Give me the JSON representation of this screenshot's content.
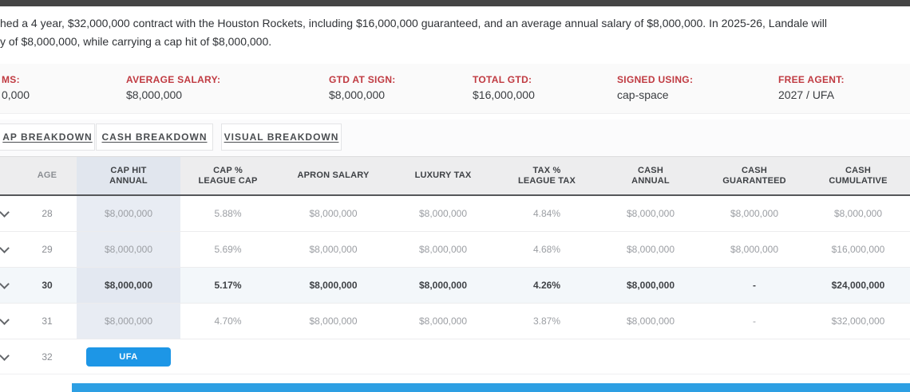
{
  "intro": {
    "line1": "hed a 4 year, $32,000,000 contract with the Houston Rockets, including $16,000,000 guaranteed, and an average annual salary of $8,000,000. In 2025-26, Landale will",
    "line2": "y of $8,000,000, while carrying a cap hit of $8,000,000."
  },
  "stats": {
    "items": [
      {
        "label": "MS:",
        "value": "0,000"
      },
      {
        "label": "AVERAGE SALARY:",
        "value": "$8,000,000"
      },
      {
        "label": "GTD AT SIGN:",
        "value": "$8,000,000"
      },
      {
        "label": "TOTAL GTD:",
        "value": "$16,000,000"
      },
      {
        "label": "SIGNED USING:",
        "value": "cap-space"
      },
      {
        "label": "FREE AGENT:",
        "value": "2027 / UFA"
      }
    ]
  },
  "tabs": {
    "items": [
      {
        "label": "AP BREAKDOWN"
      },
      {
        "label": "CASH BREAKDOWN"
      },
      {
        "label": "VISUAL BREAKDOWN"
      }
    ]
  },
  "table": {
    "columns": [
      {
        "line1": "AGE",
        "line2": ""
      },
      {
        "line1": "CAP HIT",
        "line2": "ANNUAL"
      },
      {
        "line1": "CAP %",
        "line2": "LEAGUE CAP"
      },
      {
        "line1": "APRON SALARY",
        "line2": ""
      },
      {
        "line1": "LUXURY TAX",
        "line2": ""
      },
      {
        "line1": "TAX %",
        "line2": "LEAGUE TAX"
      },
      {
        "line1": "CASH",
        "line2": "ANNUAL"
      },
      {
        "line1": "CASH",
        "line2": "GUARANTEED"
      },
      {
        "line1": "CASH",
        "line2": "CUMULATIVE"
      }
    ],
    "rows": [
      {
        "age": "28",
        "cap_hit": "$8,000,000",
        "cap_pct": "5.88%",
        "apron_salary": "$8,000,000",
        "luxury_tax": "$8,000,000",
        "tax_pct": "4.84%",
        "cash_annual": "$8,000,000",
        "cash_guaranteed": "$8,000,000",
        "cash_cumulative": "$8,000,000"
      },
      {
        "age": "29",
        "cap_hit": "$8,000,000",
        "cap_pct": "5.69%",
        "apron_salary": "$8,000,000",
        "luxury_tax": "$8,000,000",
        "tax_pct": "4.68%",
        "cash_annual": "$8,000,000",
        "cash_guaranteed": "$8,000,000",
        "cash_cumulative": "$16,000,000"
      },
      {
        "age": "30",
        "cap_hit": "$8,000,000",
        "cap_pct": "5.17%",
        "apron_salary": "$8,000,000",
        "luxury_tax": "$8,000,000",
        "tax_pct": "4.26%",
        "cash_annual": "$8,000,000",
        "cash_guaranteed": "-",
        "cash_cumulative": "$24,000,000"
      },
      {
        "age": "31",
        "cap_hit": "$8,000,000",
        "cap_pct": "4.70%",
        "apron_salary": "$8,000,000",
        "luxury_tax": "$8,000,000",
        "tax_pct": "3.87%",
        "cash_annual": "$8,000,000",
        "cash_guaranteed": "-",
        "cash_cumulative": "$32,000,000"
      },
      {
        "age": "32",
        "ufa_label": "UFA"
      }
    ]
  },
  "colors": {
    "stat_label_red": "#c03a41",
    "ufa_blue": "#1d96e6",
    "bottom_bar_blue": "#2d9fe3",
    "cap_hit_column_tint": "#e8ecf3",
    "current_row_tint": "#f3f7fa",
    "top_bar_gray": "#454545"
  }
}
